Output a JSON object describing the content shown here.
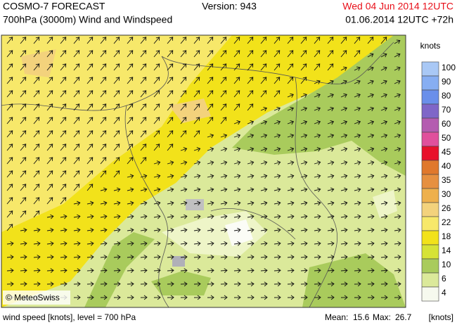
{
  "header": {
    "title": "COSMO-7 FORECAST",
    "subtitle": "700hPa (3000m) Wind and Windspeed",
    "version": "Version: 943",
    "valid_time": "Wed 04 Jun 2014 12UTC",
    "run_time": "01.06.2014 12UTC +72h"
  },
  "map": {
    "copyright": "© MeteoSwiss"
  },
  "legend": {
    "unit": "knots",
    "entries": [
      {
        "label": "100",
        "color": "#a9c8f5"
      },
      {
        "label": "90",
        "color": "#87aef2"
      },
      {
        "label": "80",
        "color": "#6a8fea"
      },
      {
        "label": "70",
        "color": "#7f66c8"
      },
      {
        "label": "60",
        "color": "#b45cb0"
      },
      {
        "label": "50",
        "color": "#e0509c"
      },
      {
        "label": "45",
        "color": "#e8102a"
      },
      {
        "label": "40",
        "color": "#e0782c"
      },
      {
        "label": "35",
        "color": "#e69040"
      },
      {
        "label": "30",
        "color": "#eeb04c"
      },
      {
        "label": "26",
        "color": "#f3d27c"
      },
      {
        "label": "22",
        "color": "#f7e86a"
      },
      {
        "label": "18",
        "color": "#f2e21a"
      },
      {
        "label": "14",
        "color": "#d6e336"
      },
      {
        "label": "10",
        "color": "#a9cb5c"
      },
      {
        "label": "6",
        "color": "#dbe99a"
      },
      {
        "label": "4",
        "color": "#f6f9ee"
      }
    ]
  },
  "footer": {
    "description": "wind speed [knots], level = 700 hPa",
    "mean_label": "Mean:",
    "mean": "15.6",
    "max_label": "Max:",
    "max": "26.7",
    "unit": "[knots]"
  }
}
